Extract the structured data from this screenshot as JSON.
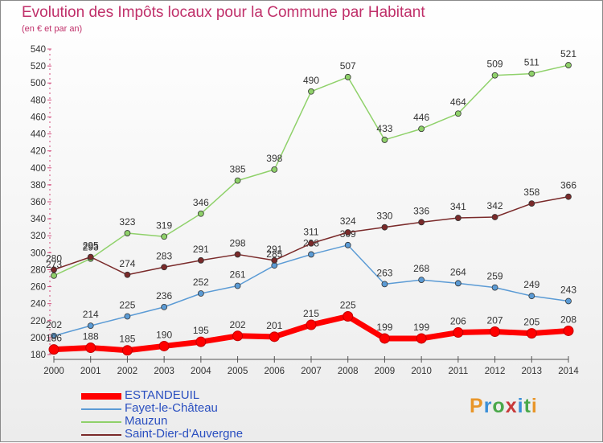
{
  "header": {
    "title": "Evolution des Impôts locaux pour la Commune par Habitant",
    "subtitle": "(en € et par an)"
  },
  "brand": {
    "letters": [
      "P",
      "r",
      "o",
      "x",
      "i",
      "t",
      "i"
    ],
    "colors": [
      "#e8962a",
      "#3a8fd8",
      "#4aa84a",
      "#c83a3a",
      "#3a8fd8",
      "#4aa84a",
      "#e8962a"
    ]
  },
  "chart_data": {
    "type": "line",
    "title": "Evolution des Impôts locaux pour la Commune par Habitant",
    "subtitle": "(en € et par an)",
    "xlabel": "",
    "ylabel": "",
    "x": [
      2000,
      2001,
      2002,
      2003,
      2004,
      2005,
      2006,
      2007,
      2008,
      2009,
      2010,
      2011,
      2012,
      2013,
      2014
    ],
    "ylim": [
      180,
      540
    ],
    "yticks": [
      180,
      200,
      220,
      240,
      260,
      280,
      300,
      320,
      340,
      360,
      380,
      400,
      420,
      440,
      460,
      480,
      500,
      520,
      540
    ],
    "grid": false,
    "legend": "bottom-left",
    "series": [
      {
        "name": "ESTANDEUIL",
        "color": "#ff0000",
        "highlight": true,
        "values": [
          186,
          188,
          185,
          190,
          195,
          202,
          201,
          215,
          225,
          199,
          199,
          206,
          207,
          205,
          208
        ]
      },
      {
        "name": "Fayet-le-Château",
        "color": "#5b9bd5",
        "values": [
          202,
          214,
          225,
          236,
          252,
          261,
          285,
          298,
          309,
          263,
          268,
          264,
          259,
          249,
          243
        ]
      },
      {
        "name": "Mauzun",
        "color": "#8fd16a",
        "values": [
          273,
          293,
          323,
          319,
          346,
          385,
          398,
          490,
          507,
          433,
          446,
          464,
          509,
          511,
          521
        ]
      },
      {
        "name": "Saint-Dier-d'Auvergne",
        "color": "#7a2a2a",
        "values": [
          280,
          295,
          274,
          283,
          291,
          298,
          291,
          311,
          324,
          330,
          336,
          341,
          342,
          358,
          366
        ]
      }
    ]
  }
}
